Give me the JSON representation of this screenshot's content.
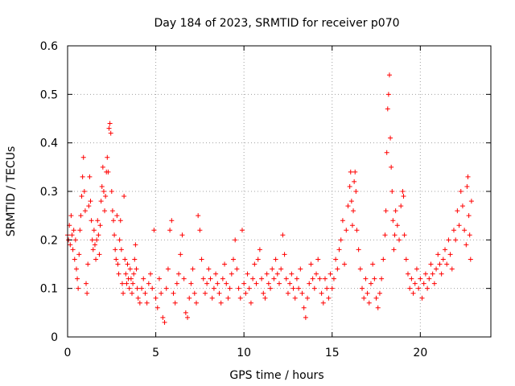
{
  "chart_data": {
    "type": "scatter",
    "title": "Day 184 of 2023, SRMTID for receiver p070",
    "xlabel": "GPS time / hours",
    "ylabel": "SRMTID / TECUs",
    "xlim": [
      0,
      24
    ],
    "ylim": [
      0,
      0.6
    ],
    "xticks": [
      0,
      5,
      10,
      15,
      20
    ],
    "xtick_labels": [
      "0",
      "5",
      "10",
      "15",
      "20"
    ],
    "yticks": [
      0,
      0.1,
      0.2,
      0.3,
      0.4,
      0.5,
      0.6
    ],
    "ytick_labels": [
      "0",
      "0.1",
      "0.2",
      "0.3",
      "0.4",
      "0.5",
      "0.6"
    ],
    "grid": true,
    "marker": "+",
    "series": [
      {
        "name": "SRMTID",
        "color": "#ff0000",
        "points": [
          [
            0.0,
            0.21
          ],
          [
            0.05,
            0.2
          ],
          [
            0.1,
            0.23
          ],
          [
            0.15,
            0.19
          ],
          [
            0.2,
            0.25
          ],
          [
            0.25,
            0.21
          ],
          [
            0.3,
            0.18
          ],
          [
            0.35,
            0.22
          ],
          [
            0.4,
            0.16
          ],
          [
            0.45,
            0.2
          ],
          [
            0.5,
            0.14
          ],
          [
            0.55,
            0.12
          ],
          [
            0.6,
            0.1
          ],
          [
            0.65,
            0.17
          ],
          [
            0.7,
            0.22
          ],
          [
            0.75,
            0.25
          ],
          [
            0.8,
            0.29
          ],
          [
            0.85,
            0.33
          ],
          [
            0.9,
            0.37
          ],
          [
            0.95,
            0.3
          ],
          [
            1.0,
            0.26
          ],
          [
            1.05,
            0.11
          ],
          [
            1.1,
            0.09
          ],
          [
            1.15,
            0.15
          ],
          [
            1.2,
            0.27
          ],
          [
            1.25,
            0.33
          ],
          [
            1.3,
            0.28
          ],
          [
            1.35,
            0.24
          ],
          [
            1.4,
            0.2
          ],
          [
            1.45,
            0.18
          ],
          [
            1.5,
            0.22
          ],
          [
            1.55,
            0.19
          ],
          [
            1.6,
            0.16
          ],
          [
            1.65,
            0.2
          ],
          [
            1.7,
            0.24
          ],
          [
            1.75,
            0.21
          ],
          [
            1.8,
            0.17
          ],
          [
            1.85,
            0.23
          ],
          [
            1.9,
            0.28
          ],
          [
            1.95,
            0.31
          ],
          [
            2.0,
            0.35
          ],
          [
            2.05,
            0.3
          ],
          [
            2.1,
            0.26
          ],
          [
            2.15,
            0.29
          ],
          [
            2.2,
            0.34
          ],
          [
            2.25,
            0.37
          ],
          [
            2.3,
            0.34
          ],
          [
            2.35,
            0.43
          ],
          [
            2.4,
            0.44
          ],
          [
            2.45,
            0.42
          ],
          [
            2.5,
            0.3
          ],
          [
            2.55,
            0.26
          ],
          [
            2.6,
            0.24
          ],
          [
            2.65,
            0.21
          ],
          [
            2.7,
            0.18
          ],
          [
            2.75,
            0.16
          ],
          [
            2.8,
            0.25
          ],
          [
            2.85,
            0.15
          ],
          [
            2.9,
            0.13
          ],
          [
            2.95,
            0.2
          ],
          [
            3.0,
            0.24
          ],
          [
            3.05,
            0.18
          ],
          [
            3.1,
            0.11
          ],
          [
            3.15,
            0.09
          ],
          [
            3.2,
            0.29
          ],
          [
            3.25,
            0.16
          ],
          [
            3.3,
            0.13
          ],
          [
            3.35,
            0.11
          ],
          [
            3.4,
            0.15
          ],
          [
            3.45,
            0.12
          ],
          [
            3.5,
            0.1
          ],
          [
            3.55,
            0.14
          ],
          [
            3.6,
            0.12
          ],
          [
            3.65,
            0.09
          ],
          [
            3.7,
            0.11
          ],
          [
            3.75,
            0.13
          ],
          [
            3.8,
            0.16
          ],
          [
            3.85,
            0.19
          ],
          [
            3.9,
            0.14
          ],
          [
            3.95,
            0.1
          ],
          [
            4.0,
            0.08
          ],
          [
            4.1,
            0.07
          ],
          [
            4.2,
            0.1
          ],
          [
            4.3,
            0.12
          ],
          [
            4.4,
            0.09
          ],
          [
            4.5,
            0.07
          ],
          [
            4.6,
            0.11
          ],
          [
            4.7,
            0.13
          ],
          [
            4.8,
            0.1
          ],
          [
            4.9,
            0.22
          ],
          [
            5.0,
            0.08
          ],
          [
            5.1,
            0.06
          ],
          [
            5.2,
            0.12
          ],
          [
            5.3,
            0.09
          ],
          [
            5.4,
            0.04
          ],
          [
            5.5,
            0.03
          ],
          [
            5.6,
            0.1
          ],
          [
            5.7,
            0.14
          ],
          [
            5.8,
            0.22
          ],
          [
            5.9,
            0.24
          ],
          [
            6.0,
            0.09
          ],
          [
            6.1,
            0.07
          ],
          [
            6.2,
            0.11
          ],
          [
            6.3,
            0.13
          ],
          [
            6.4,
            0.17
          ],
          [
            6.5,
            0.21
          ],
          [
            6.6,
            0.12
          ],
          [
            6.7,
            0.05
          ],
          [
            6.8,
            0.04
          ],
          [
            6.9,
            0.08
          ],
          [
            7.0,
            0.11
          ],
          [
            7.1,
            0.14
          ],
          [
            7.2,
            0.09
          ],
          [
            7.3,
            0.07
          ],
          [
            7.4,
            0.25
          ],
          [
            7.5,
            0.22
          ],
          [
            7.6,
            0.16
          ],
          [
            7.7,
            0.12
          ],
          [
            7.8,
            0.09
          ],
          [
            7.9,
            0.11
          ],
          [
            8.0,
            0.14
          ],
          [
            8.1,
            0.12
          ],
          [
            8.2,
            0.08
          ],
          [
            8.3,
            0.1
          ],
          [
            8.4,
            0.13
          ],
          [
            8.5,
            0.11
          ],
          [
            8.6,
            0.09
          ],
          [
            8.7,
            0.07
          ],
          [
            8.8,
            0.12
          ],
          [
            8.9,
            0.15
          ],
          [
            9.0,
            0.11
          ],
          [
            9.1,
            0.08
          ],
          [
            9.2,
            0.1
          ],
          [
            9.3,
            0.13
          ],
          [
            9.4,
            0.16
          ],
          [
            9.5,
            0.2
          ],
          [
            9.6,
            0.14
          ],
          [
            9.7,
            0.1
          ],
          [
            9.8,
            0.08
          ],
          [
            9.9,
            0.22
          ],
          [
            10.0,
            0.11
          ],
          [
            10.1,
            0.09
          ],
          [
            10.2,
            0.13
          ],
          [
            10.3,
            0.1
          ],
          [
            10.4,
            0.07
          ],
          [
            10.5,
            0.12
          ],
          [
            10.6,
            0.15
          ],
          [
            10.7,
            0.11
          ],
          [
            10.8,
            0.16
          ],
          [
            10.9,
            0.18
          ],
          [
            11.0,
            0.12
          ],
          [
            11.1,
            0.09
          ],
          [
            11.2,
            0.08
          ],
          [
            11.3,
            0.13
          ],
          [
            11.4,
            0.11
          ],
          [
            11.5,
            0.1
          ],
          [
            11.6,
            0.14
          ],
          [
            11.7,
            0.12
          ],
          [
            11.8,
            0.16
          ],
          [
            11.9,
            0.13
          ],
          [
            12.0,
            0.11
          ],
          [
            12.1,
            0.14
          ],
          [
            12.2,
            0.21
          ],
          [
            12.3,
            0.17
          ],
          [
            12.4,
            0.12
          ],
          [
            12.5,
            0.09
          ],
          [
            12.6,
            0.11
          ],
          [
            12.7,
            0.13
          ],
          [
            12.8,
            0.1
          ],
          [
            12.9,
            0.08
          ],
          [
            13.0,
            0.12
          ],
          [
            13.1,
            0.1
          ],
          [
            13.2,
            0.14
          ],
          [
            13.3,
            0.09
          ],
          [
            13.4,
            0.06
          ],
          [
            13.5,
            0.04
          ],
          [
            13.6,
            0.08
          ],
          [
            13.7,
            0.11
          ],
          [
            13.8,
            0.15
          ],
          [
            13.9,
            0.12
          ],
          [
            14.0,
            0.1
          ],
          [
            14.1,
            0.13
          ],
          [
            14.2,
            0.16
          ],
          [
            14.3,
            0.12
          ],
          [
            14.4,
            0.09
          ],
          [
            14.5,
            0.07
          ],
          [
            14.6,
            0.12
          ],
          [
            14.7,
            0.1
          ],
          [
            14.8,
            0.08
          ],
          [
            14.9,
            0.13
          ],
          [
            15.0,
            0.1
          ],
          [
            15.1,
            0.12
          ],
          [
            15.2,
            0.16
          ],
          [
            15.3,
            0.14
          ],
          [
            15.4,
            0.18
          ],
          [
            15.5,
            0.2
          ],
          [
            15.6,
            0.24
          ],
          [
            15.7,
            0.15
          ],
          [
            15.8,
            0.22
          ],
          [
            15.9,
            0.27
          ],
          [
            16.0,
            0.31
          ],
          [
            16.05,
            0.34
          ],
          [
            16.1,
            0.28
          ],
          [
            16.15,
            0.23
          ],
          [
            16.2,
            0.26
          ],
          [
            16.25,
            0.32
          ],
          [
            16.3,
            0.34
          ],
          [
            16.35,
            0.3
          ],
          [
            16.4,
            0.22
          ],
          [
            16.5,
            0.18
          ],
          [
            16.6,
            0.14
          ],
          [
            16.7,
            0.1
          ],
          [
            16.8,
            0.08
          ],
          [
            16.9,
            0.12
          ],
          [
            17.0,
            0.09
          ],
          [
            17.1,
            0.07
          ],
          [
            17.2,
            0.11
          ],
          [
            17.3,
            0.15
          ],
          [
            17.4,
            0.12
          ],
          [
            17.5,
            0.08
          ],
          [
            17.6,
            0.06
          ],
          [
            17.7,
            0.09
          ],
          [
            17.8,
            0.12
          ],
          [
            17.9,
            0.16
          ],
          [
            18.0,
            0.21
          ],
          [
            18.05,
            0.26
          ],
          [
            18.1,
            0.38
          ],
          [
            18.15,
            0.47
          ],
          [
            18.2,
            0.5
          ],
          [
            18.25,
            0.54
          ],
          [
            18.3,
            0.41
          ],
          [
            18.35,
            0.35
          ],
          [
            18.4,
            0.3
          ],
          [
            18.45,
            0.24
          ],
          [
            18.5,
            0.18
          ],
          [
            18.55,
            0.21
          ],
          [
            18.6,
            0.26
          ],
          [
            18.7,
            0.23
          ],
          [
            18.8,
            0.2
          ],
          [
            18.9,
            0.27
          ],
          [
            19.0,
            0.3
          ],
          [
            19.05,
            0.29
          ],
          [
            19.1,
            0.21
          ],
          [
            19.2,
            0.16
          ],
          [
            19.3,
            0.13
          ],
          [
            19.4,
            0.1
          ],
          [
            19.5,
            0.12
          ],
          [
            19.6,
            0.09
          ],
          [
            19.7,
            0.11
          ],
          [
            19.8,
            0.14
          ],
          [
            19.9,
            0.1
          ],
          [
            20.0,
            0.12
          ],
          [
            20.1,
            0.08
          ],
          [
            20.2,
            0.11
          ],
          [
            20.3,
            0.13
          ],
          [
            20.4,
            0.1
          ],
          [
            20.5,
            0.12
          ],
          [
            20.6,
            0.15
          ],
          [
            20.7,
            0.13
          ],
          [
            20.8,
            0.11
          ],
          [
            20.9,
            0.14
          ],
          [
            21.0,
            0.17
          ],
          [
            21.1,
            0.15
          ],
          [
            21.2,
            0.13
          ],
          [
            21.3,
            0.16
          ],
          [
            21.4,
            0.18
          ],
          [
            21.5,
            0.15
          ],
          [
            21.6,
            0.2
          ],
          [
            21.7,
            0.17
          ],
          [
            21.8,
            0.14
          ],
          [
            21.9,
            0.22
          ],
          [
            22.0,
            0.2
          ],
          [
            22.1,
            0.26
          ],
          [
            22.2,
            0.23
          ],
          [
            22.3,
            0.3
          ],
          [
            22.4,
            0.27
          ],
          [
            22.5,
            0.22
          ],
          [
            22.6,
            0.19
          ],
          [
            22.65,
            0.31
          ],
          [
            22.7,
            0.33
          ],
          [
            22.75,
            0.25
          ],
          [
            22.8,
            0.21
          ],
          [
            22.85,
            0.16
          ],
          [
            22.9,
            0.28
          ]
        ]
      }
    ]
  }
}
